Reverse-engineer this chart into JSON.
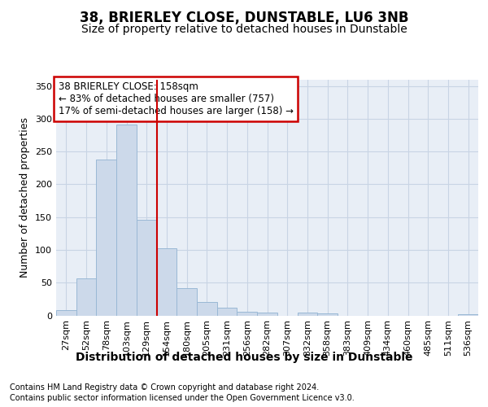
{
  "title": "38, BRIERLEY CLOSE, DUNSTABLE, LU6 3NB",
  "subtitle": "Size of property relative to detached houses in Dunstable",
  "xlabel": "Distribution of detached houses by size in Dunstable",
  "ylabel": "Number of detached properties",
  "bar_labels": [
    "27sqm",
    "52sqm",
    "78sqm",
    "103sqm",
    "129sqm",
    "154sqm",
    "180sqm",
    "205sqm",
    "231sqm",
    "256sqm",
    "282sqm",
    "307sqm",
    "332sqm",
    "358sqm",
    "383sqm",
    "409sqm",
    "434sqm",
    "460sqm",
    "485sqm",
    "511sqm",
    "536sqm"
  ],
  "bar_values": [
    8,
    57,
    238,
    291,
    146,
    102,
    41,
    20,
    12,
    6,
    4,
    0,
    4,
    3,
    0,
    0,
    0,
    0,
    0,
    0,
    2
  ],
  "bar_color": "#ccd9ea",
  "bar_edge_color": "#9ab8d5",
  "vline_color": "#cc0000",
  "annotation_text": "38 BRIERLEY CLOSE: 158sqm\n← 83% of detached houses are smaller (757)\n17% of semi-detached houses are larger (158) →",
  "annotation_box_color": "#ffffff",
  "annotation_box_edge_color": "#cc0000",
  "ylim": [
    0,
    360
  ],
  "yticks": [
    0,
    50,
    100,
    150,
    200,
    250,
    300,
    350
  ],
  "grid_color": "#c8d4e4",
  "background_color": "#e8eef6",
  "footer_line1": "Contains HM Land Registry data © Crown copyright and database right 2024.",
  "footer_line2": "Contains public sector information licensed under the Open Government Licence v3.0.",
  "title_fontsize": 12,
  "subtitle_fontsize": 10,
  "xlabel_fontsize": 10,
  "ylabel_fontsize": 9,
  "tick_fontsize": 8,
  "annotation_fontsize": 8.5,
  "footer_fontsize": 7
}
